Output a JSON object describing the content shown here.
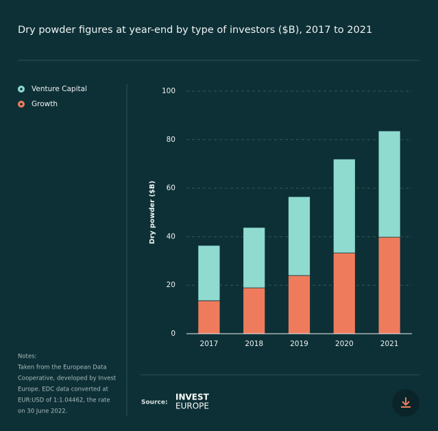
{
  "chart_data": {
    "type": "stacked-bar",
    "title": "Dry powder figures at year-end by type of investors ($B), 2017 to 2021",
    "y_label": "Dry powder ($B)",
    "categories": [
      "2017",
      "2018",
      "2019",
      "2020",
      "2021"
    ],
    "series": [
      {
        "name": "Venture Capital",
        "color": "#8fdbd0",
        "values": [
          22.8,
          24.9,
          32.5,
          38.7,
          43.8
        ]
      },
      {
        "name": "Growth",
        "color": "#ee7c5c",
        "values": [
          13.6,
          18.9,
          24.0,
          33.3,
          39.8
        ]
      }
    ],
    "ylim": [
      0,
      100
    ],
    "yticks": [
      0,
      20,
      40,
      60,
      80,
      100
    ],
    "grid": true
  },
  "notes": {
    "title": "Notes:",
    "lines": [
      "Taken from the European Data",
      "Cooperative, developed by Invest",
      "Europe. EDC data converted at",
      "EUR:USD of 1:1.04462, the rate",
      "on 30 June 2022."
    ]
  },
  "source": {
    "label": "Source:",
    "logo": [
      "INVEST",
      "EUROPE"
    ]
  }
}
